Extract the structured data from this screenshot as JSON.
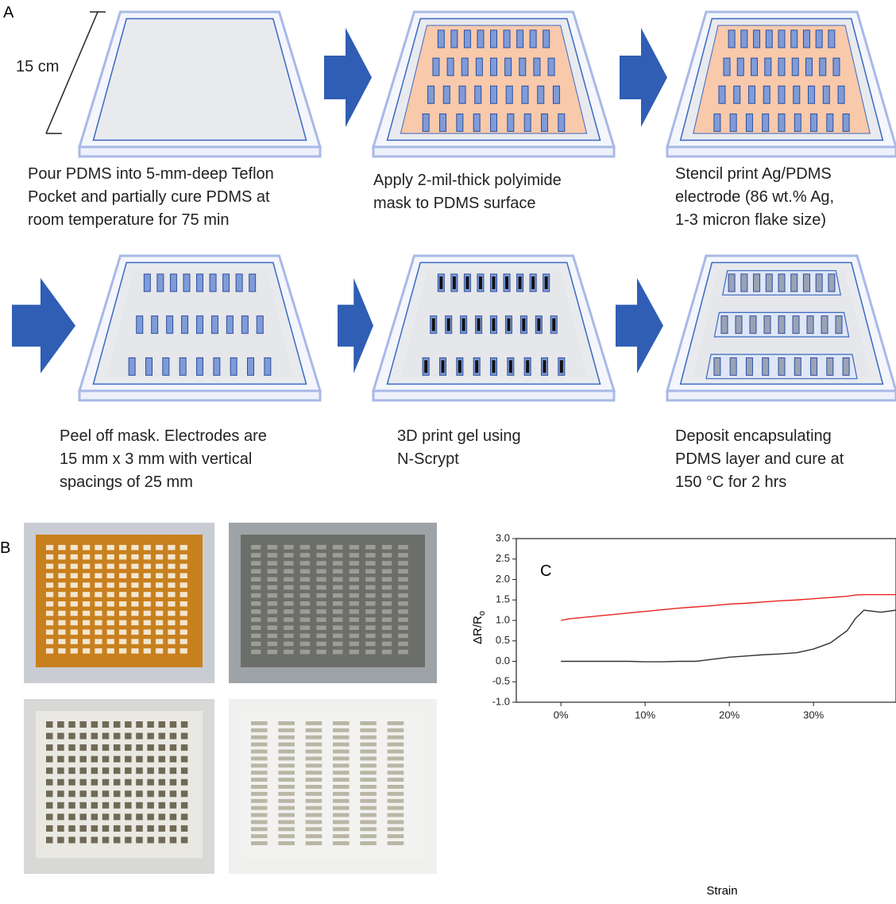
{
  "panel_a": {
    "label": "A",
    "scale_label": "15 cm",
    "steps": [
      {
        "lines": [
          "Pour PDMS into 5-mm-deep Teflon",
          "Pocket and partially cure PDMS at",
          "room temperature for 75 min"
        ]
      },
      {
        "lines": [
          "Apply 2-mil-thick polyimide",
          "mask to PDMS surface"
        ]
      },
      {
        "lines": [
          "Stencil print Ag/PDMS",
          "electrode (86 wt.% Ag,",
          "1-3 micron flake size)"
        ]
      },
      {
        "lines": [
          "Peel off mask. Electrodes are",
          "15 mm x 3 mm with vertical",
          "spacings of 25 mm"
        ]
      },
      {
        "lines": [
          "3D print gel using",
          "N-Scrypt"
        ]
      },
      {
        "lines": [
          "Deposit encapsulating",
          "PDMS layer and cure at",
          "150 °C for 2 hrs"
        ]
      }
    ]
  },
  "panel_b": {
    "label": "B"
  },
  "chart_data": {
    "type": "line",
    "label": "C",
    "xlabel": "Strain",
    "ylabel": {
      "main": "ΔR/R",
      "sub": "o"
    },
    "x": [
      0,
      1,
      2,
      4,
      6,
      8,
      10,
      12,
      14,
      16,
      18,
      20,
      22,
      24,
      26,
      28,
      30,
      32,
      34,
      35,
      36,
      38,
      39.8
    ],
    "series": [
      {
        "color": "#e8231f",
        "values": [
          1.0,
          1.04,
          1.06,
          1.1,
          1.14,
          1.18,
          1.22,
          1.26,
          1.3,
          1.33,
          1.36,
          1.4,
          1.42,
          1.45,
          1.48,
          1.5,
          1.53,
          1.56,
          1.59,
          1.62,
          1.63,
          1.63,
          1.63
        ]
      },
      {
        "color": "#333333",
        "values": [
          0,
          0,
          0,
          0,
          0,
          0,
          -0.01,
          -0.01,
          0,
          0,
          0.05,
          0.1,
          0.13,
          0.16,
          0.18,
          0.21,
          0.3,
          0.45,
          0.75,
          1.05,
          1.25,
          1.2,
          1.25
        ]
      }
    ],
    "xlim": [
      -5.3,
      39.8
    ],
    "ylim": [
      -1,
      3
    ],
    "xticks": [
      {
        "value": 0,
        "label": "0%"
      },
      {
        "value": 10,
        "label": "10%"
      },
      {
        "value": 20,
        "label": "20%"
      },
      {
        "value": 30,
        "label": "30%"
      }
    ],
    "yticks": [
      {
        "value": -1,
        "label": "-1.0"
      },
      {
        "value": -0.5,
        "label": "-0.5"
      },
      {
        "value": 0,
        "label": "0.0"
      },
      {
        "value": 0.5,
        "label": "0.5"
      },
      {
        "value": 1,
        "label": "1.0"
      },
      {
        "value": 1.5,
        "label": "1.5"
      },
      {
        "value": 2,
        "label": "2.0"
      },
      {
        "value": 2.5,
        "label": "2.5"
      },
      {
        "value": 3,
        "label": "3.0"
      }
    ]
  }
}
